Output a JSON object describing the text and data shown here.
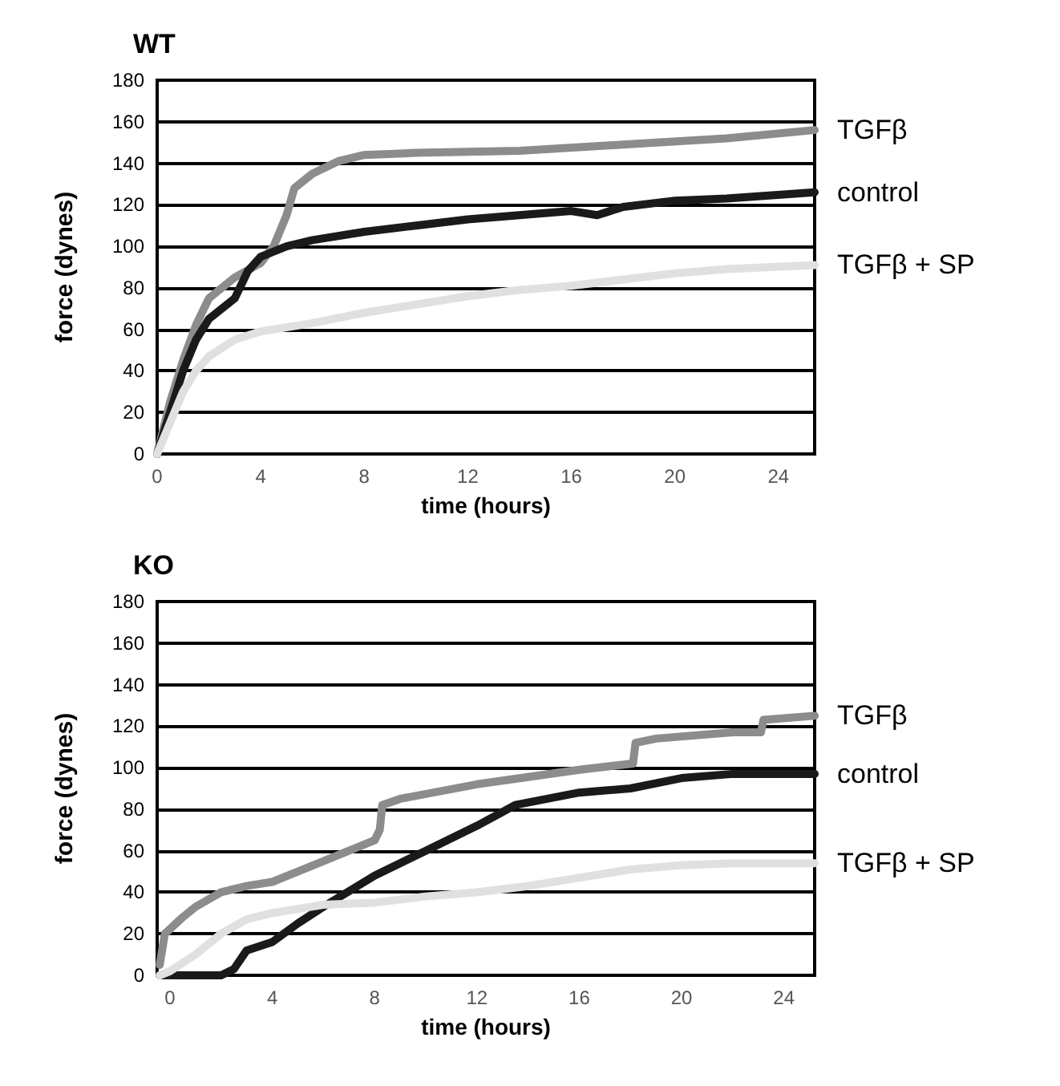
{
  "chart_data": [
    {
      "type": "line",
      "title": "WT",
      "xlabel": "time (hours)",
      "ylabel": "force (dynes)",
      "xlim": [
        0,
        25.4
      ],
      "xticks": [
        0,
        4,
        8,
        12,
        16,
        20,
        24
      ],
      "ylim": [
        0,
        180
      ],
      "yticks": [
        0,
        20,
        40,
        60,
        80,
        100,
        120,
        140,
        160,
        180
      ],
      "grid": "y",
      "legend": false,
      "marker": "none",
      "line_style": "solid",
      "series": [
        {
          "name": "TGFβ",
          "color": "#8c8c8c",
          "x": [
            0,
            0.5,
            1,
            1.5,
            2,
            2.5,
            3,
            4,
            4.5,
            5,
            5.3,
            6,
            7,
            8,
            10,
            14,
            18,
            22,
            25.4
          ],
          "values": [
            0,
            25,
            45,
            62,
            75,
            80,
            85,
            92,
            100,
            115,
            128,
            135,
            141,
            144,
            145,
            146,
            149,
            152,
            156
          ]
        },
        {
          "name": "control",
          "color": "#1a1a1a",
          "x": [
            0,
            0.5,
            1,
            1.5,
            2,
            3,
            3.5,
            4,
            5,
            6,
            8,
            10,
            12,
            14,
            16,
            17,
            18,
            20,
            22,
            25.4
          ],
          "values": [
            0,
            20,
            40,
            55,
            65,
            75,
            88,
            95,
            100,
            103,
            107,
            110,
            113,
            115,
            117,
            115,
            119,
            122,
            123,
            126
          ]
        },
        {
          "name": "TGFβ + SP",
          "color": "#e0e0e0",
          "x": [
            0,
            0.5,
            1,
            1.5,
            2,
            3,
            4,
            6,
            8,
            10,
            12,
            14,
            16,
            18,
            20,
            22,
            25.4
          ],
          "values": [
            0,
            15,
            30,
            40,
            47,
            55,
            59,
            63,
            68,
            72,
            76,
            79,
            81,
            84,
            87,
            89,
            91
          ]
        }
      ]
    },
    {
      "type": "line",
      "title": "KO",
      "xlabel": "time (hours)",
      "ylabel": "force (dynes)",
      "xlim": [
        -0.5,
        25.2
      ],
      "xticks": [
        0,
        4,
        8,
        12,
        16,
        20,
        24
      ],
      "ylim": [
        0,
        180
      ],
      "yticks": [
        0,
        20,
        40,
        60,
        80,
        100,
        120,
        140,
        160,
        180
      ],
      "grid": "y",
      "legend": false,
      "marker": "none",
      "line_style": "solid",
      "series": [
        {
          "name": "TGFβ",
          "color": "#8c8c8c",
          "x": [
            -0.4,
            -0.2,
            0.5,
            1,
            2,
            3,
            4,
            5,
            6,
            7,
            8,
            8.2,
            8.3,
            9,
            12,
            16,
            18.1,
            18.2,
            19,
            22,
            23.1,
            23.2,
            25.2
          ],
          "values": [
            5,
            20,
            28,
            33,
            40,
            43,
            45,
            50,
            55,
            60,
            65,
            70,
            82,
            85,
            92,
            99,
            102,
            112,
            114,
            117,
            117,
            123,
            125
          ]
        },
        {
          "name": "control",
          "color": "#1a1a1a",
          "x": [
            -0.4,
            1,
            2,
            2.5,
            3,
            4,
            5,
            6,
            8,
            10,
            12,
            13.5,
            16,
            18,
            20,
            22,
            25.2
          ],
          "values": [
            0,
            0,
            0,
            3,
            12,
            16,
            25,
            33,
            48,
            60,
            72,
            82,
            88,
            90,
            95,
            97,
            97
          ]
        },
        {
          "name": "TGFβ + SP",
          "color": "#e0e0e0",
          "x": [
            -0.4,
            0,
            1,
            2,
            3,
            4,
            6,
            8,
            10,
            12,
            14,
            16,
            18,
            20,
            22,
            25.2
          ],
          "values": [
            0,
            2,
            10,
            20,
            27,
            30,
            34,
            35,
            38,
            40,
            43,
            47,
            51,
            53,
            54,
            54
          ]
        }
      ]
    }
  ]
}
